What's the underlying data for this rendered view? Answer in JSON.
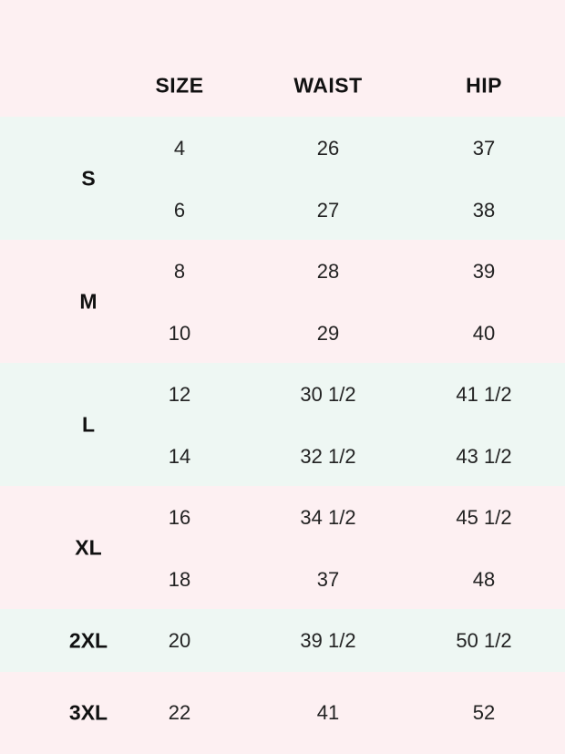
{
  "table": {
    "header": [
      "SIZE",
      "WAIST",
      "HIP"
    ],
    "groups": [
      {
        "label": "S",
        "rows": [
          [
            "4",
            "26",
            "37"
          ],
          [
            "6",
            "27",
            "38"
          ]
        ]
      },
      {
        "label": "M",
        "rows": [
          [
            "8",
            "28",
            "39"
          ],
          [
            "10",
            "29",
            "40"
          ]
        ]
      },
      {
        "label": "L",
        "rows": [
          [
            "12",
            "30 1/2",
            "41 1/2"
          ],
          [
            "14",
            "32 1/2",
            "43 1/2"
          ]
        ]
      },
      {
        "label": "XL",
        "rows": [
          [
            "16",
            "34 1/2",
            "45 1/2"
          ],
          [
            "18",
            "37",
            "48"
          ]
        ]
      },
      {
        "label": "2XL",
        "rows": [
          [
            "20",
            "39 1/2",
            "50 1/2"
          ]
        ]
      },
      {
        "label": "3XL",
        "rows": [
          [
            "22",
            "41",
            "52"
          ]
        ]
      }
    ]
  }
}
